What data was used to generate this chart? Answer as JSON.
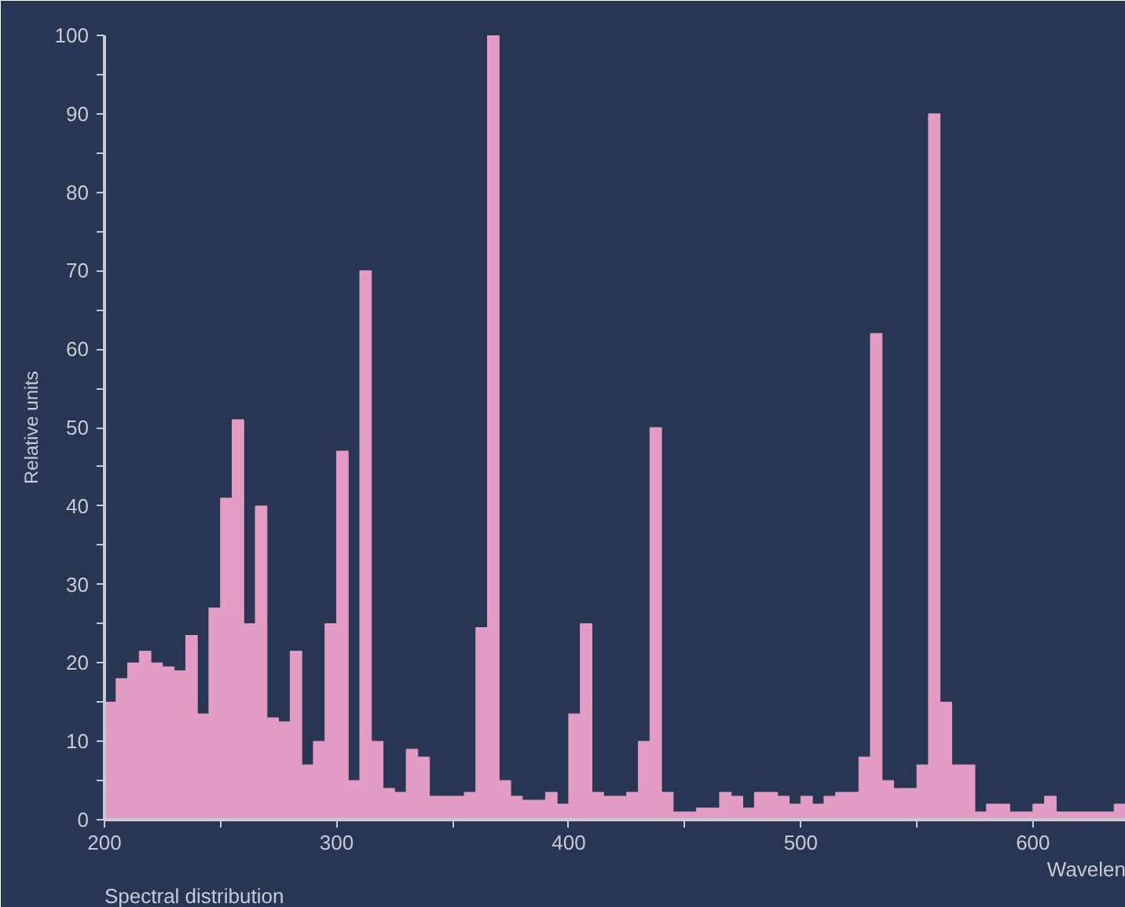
{
  "chart_data": {
    "type": "histogram",
    "ylabel": "Relative units",
    "xlabel": "Wavelen",
    "annotations": [
      "Spectral distribution"
    ],
    "bins": [
      200,
      205,
      210,
      215,
      220,
      225,
      230,
      235,
      240,
      245,
      250,
      255,
      260,
      265,
      270,
      275,
      280,
      285,
      290,
      295,
      300,
      305,
      310,
      315,
      320,
      325,
      330,
      335,
      340,
      345,
      350,
      355,
      360,
      365,
      370,
      375,
      380,
      385,
      390,
      395,
      400,
      405,
      410,
      415,
      420,
      425,
      430,
      435,
      440,
      445,
      450,
      455,
      460,
      465,
      470,
      475,
      480,
      485,
      490,
      495,
      500,
      505,
      510,
      515,
      520,
      525,
      530,
      535,
      540,
      545,
      550,
      555,
      560,
      565,
      570,
      575,
      580,
      585,
      590,
      595,
      600,
      605,
      610,
      615,
      620,
      625,
      630,
      635,
      640
    ],
    "values": [
      15,
      18,
      20,
      21.5,
      20,
      19.5,
      19,
      23.5,
      13.5,
      27,
      41,
      51,
      25,
      40,
      13,
      12.5,
      21.5,
      7,
      10,
      25,
      47,
      5,
      70,
      10,
      4,
      3.5,
      9,
      8,
      3,
      3,
      3,
      3.5,
      24.5,
      100,
      5,
      3,
      2.5,
      2.5,
      3.5,
      2,
      13.5,
      25,
      3.5,
      3,
      3,
      3.5,
      10,
      50,
      3.5,
      1,
      1,
      1.5,
      1.5,
      3.5,
      3,
      1.5,
      3.5,
      3.5,
      3,
      2,
      3,
      2,
      3,
      3.5,
      3.5,
      8,
      62,
      5,
      4,
      4,
      7,
      90,
      15,
      7,
      7,
      1,
      2,
      2,
      1,
      1,
      2,
      3,
      1,
      1,
      1,
      1,
      1,
      2
    ],
    "color": "#e39cc4",
    "xlim": [
      200,
      640
    ],
    "ylim": [
      0,
      100
    ],
    "xticks": [
      200,
      {
        "value": 250,
        "label": null
      },
      300,
      {
        "value": 350,
        "label": null
      },
      400,
      {
        "value": 450,
        "label": null
      },
      500,
      {
        "value": 550,
        "label": null
      },
      600
    ],
    "yticks": [
      0,
      {
        "value": 5,
        "label": null
      },
      10,
      {
        "value": 15,
        "label": null
      },
      20,
      {
        "value": 25,
        "label": null
      },
      30,
      {
        "value": 35,
        "label": null
      },
      40,
      {
        "value": 45,
        "label": null
      },
      50,
      {
        "value": 55,
        "label": null
      },
      60,
      {
        "value": 65,
        "label": null
      },
      70,
      {
        "value": 75,
        "label": null
      },
      80,
      {
        "value": 85,
        "label": null
      },
      90,
      {
        "value": 95,
        "label": null
      },
      100
    ]
  }
}
